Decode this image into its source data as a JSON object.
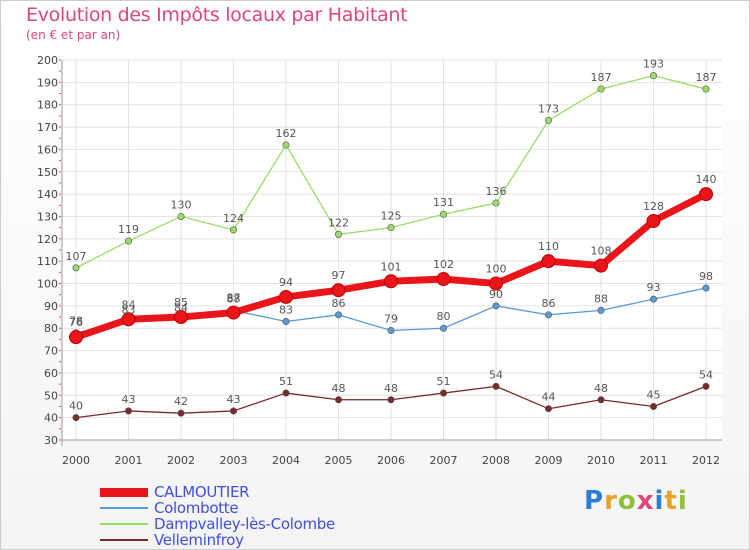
{
  "page": {
    "title": "Evolution des Impôts locaux par Habitant",
    "subtitle": "(en € et par an)"
  },
  "logo": {
    "text": "Proxiti",
    "letter_colors": [
      "#2a7fd4",
      "#e8a22b",
      "#8fc13b",
      "#e0457b",
      "#2a7fd4",
      "#e8a22b",
      "#8fc13b"
    ]
  },
  "chart_data": {
    "type": "line",
    "title": "Evolution des Impôts locaux par Habitant",
    "subtitle": "(en € et par an)",
    "xlabel": "",
    "ylabel": "",
    "categories": [
      "2000",
      "2001",
      "2002",
      "2003",
      "2004",
      "2005",
      "2006",
      "2007",
      "2008",
      "2009",
      "2010",
      "2011",
      "2012"
    ],
    "ylim": [
      30,
      200
    ],
    "yticks": [
      30,
      40,
      50,
      60,
      70,
      80,
      90,
      100,
      110,
      120,
      130,
      140,
      150,
      160,
      170,
      180,
      190,
      200
    ],
    "grid": true,
    "legend_position": "bottom-left",
    "series": [
      {
        "name": "CALMOUTIER",
        "color": "#e8161a",
        "emphasis": true,
        "values": [
          76,
          84,
          85,
          87,
          94,
          97,
          101,
          102,
          100,
          110,
          108,
          128,
          140
        ]
      },
      {
        "name": "Colombotte",
        "color": "#5b9bd5",
        "values": [
          78,
          83,
          84,
          88,
          83,
          86,
          79,
          80,
          90,
          86,
          88,
          93,
          98
        ]
      },
      {
        "name": "Dampvalley-lès-Colombe",
        "color": "#99dd66",
        "values": [
          107,
          119,
          130,
          124,
          162,
          122,
          125,
          131,
          136,
          173,
          187,
          193,
          187
        ]
      },
      {
        "name": "Velleminfroy",
        "color": "#7a2a2a",
        "values": [
          40,
          43,
          42,
          43,
          51,
          48,
          48,
          51,
          54,
          44,
          48,
          45,
          54
        ]
      }
    ]
  }
}
